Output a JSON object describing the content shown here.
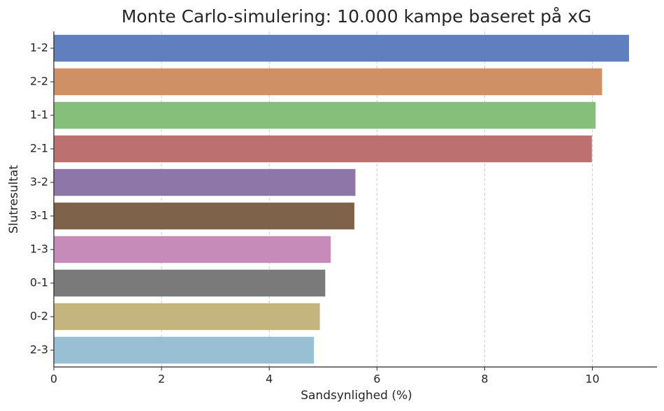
{
  "chart_data": {
    "type": "barh",
    "title": "Monte Carlo-simulering: 10.000 kampe baseret på xG",
    "x_label": "Sandsynlighed (%)",
    "y_label": "Slutresultat",
    "categories": [
      "1-2",
      "2-2",
      "1-1",
      "2-1",
      "3-2",
      "3-1",
      "1-3",
      "0-1",
      "0-2",
      "2-3"
    ],
    "values": [
      10.68,
      10.18,
      10.06,
      9.99,
      5.6,
      5.58,
      5.14,
      5.04,
      4.94,
      4.83
    ],
    "colors": [
      "#5f7fbf",
      "#d09066",
      "#86bf7a",
      "#bc7070",
      "#8f76a8",
      "#7e6249",
      "#c68bb9",
      "#7a7a7a",
      "#c4b57e",
      "#98bfd4"
    ],
    "xlim": [
      0,
      11.2
    ],
    "xticks": [
      0,
      2,
      4,
      6,
      8,
      10
    ],
    "grid": true
  }
}
